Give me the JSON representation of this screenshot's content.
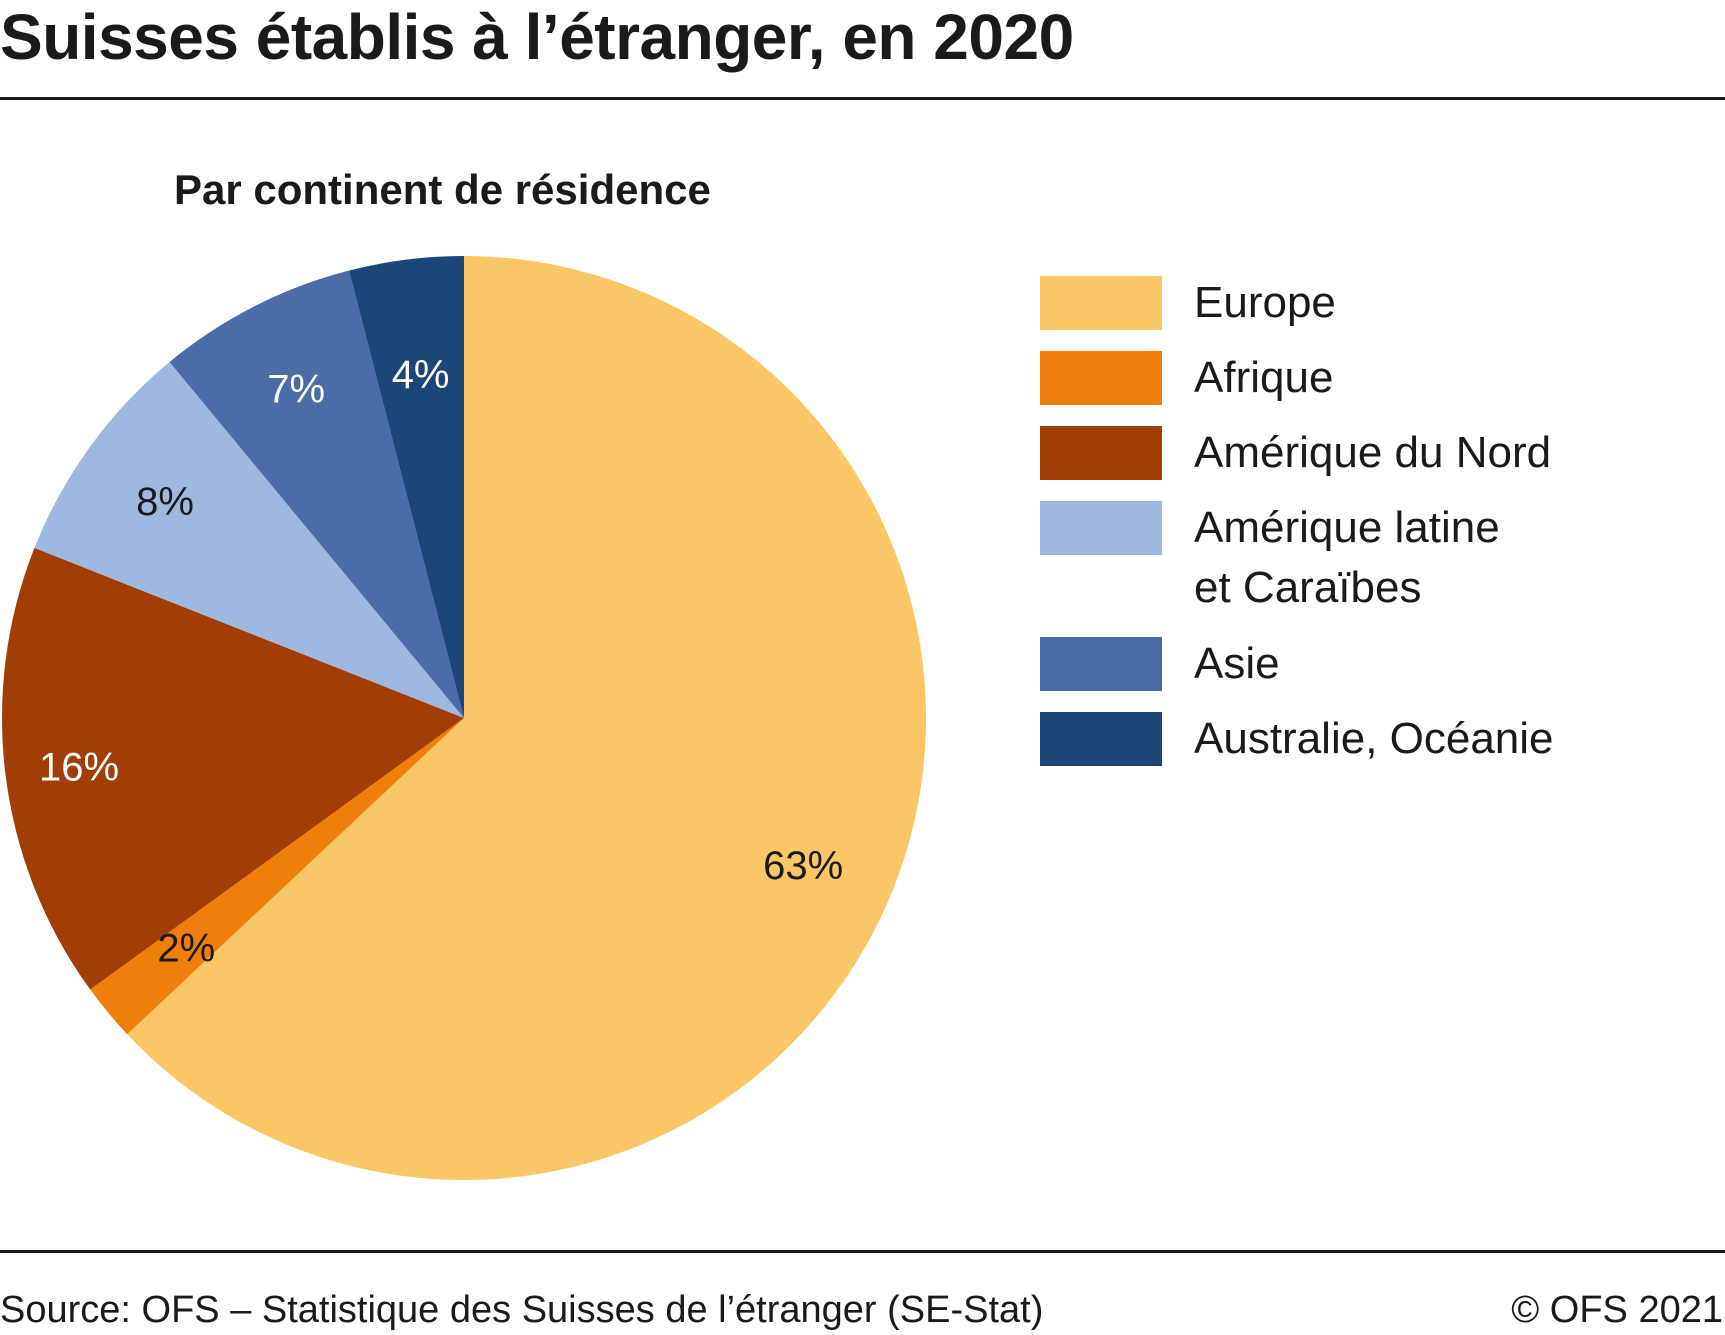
{
  "header": {
    "title": "Suisses établis à l’étranger, en 2020"
  },
  "chart_data": {
    "type": "pie",
    "subtitle": "Par continent de résidence",
    "slices": [
      {
        "name": "Europe",
        "value": 63,
        "label": "63%",
        "color": "#FAC666",
        "label_color": "#1a1a1a"
      },
      {
        "name": "Afrique",
        "value": 2,
        "label": "2%",
        "color": "#F07E0A",
        "label_color": "#1a1a1a"
      },
      {
        "name": "Amérique du Nord",
        "value": 16,
        "label": "16%",
        "color": "#A13E05",
        "label_color": "#ffffff"
      },
      {
        "name": "Amérique latine\net Caraïbes",
        "value": 8,
        "label": "8%",
        "color": "#9FB8E0",
        "label_color": "#1a1a1a"
      },
      {
        "name": "Asie",
        "value": 7,
        "label": "7%",
        "color": "#4A6DA7",
        "label_color": "#ffffff"
      },
      {
        "name": "Australie, Océanie",
        "value": 4,
        "label": "4%",
        "color": "#1C4678",
        "label_color": "#ffffff"
      }
    ],
    "start": "12 o'clock",
    "direction": "clockwise",
    "legend_position": "right"
  },
  "footer": {
    "source": "Source: OFS – Statistique des Suisses de l’étranger (SE-Stat)",
    "copyright": "© OFS 2021"
  }
}
